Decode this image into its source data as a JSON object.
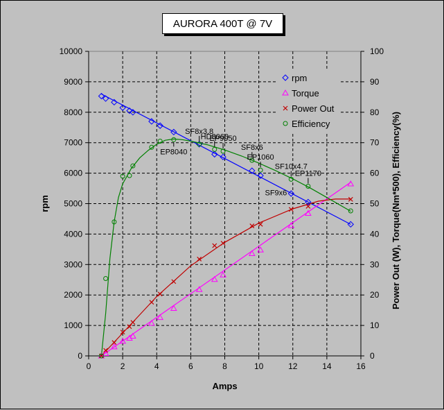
{
  "title": "AURORA 400T @ 7V",
  "chart_data": {
    "type": "scatter",
    "xlabel": "Amps",
    "ylabel_left": "rpm",
    "ylabel_right": "Power Out (W), Torque(Nm*500), Efficiency(%)",
    "xlim": [
      0,
      16
    ],
    "ylim_left": [
      0,
      10000
    ],
    "ylim_right": [
      0,
      100
    ],
    "x_ticks": [
      "0",
      "2",
      "4",
      "6",
      "8",
      "10",
      "12",
      "14",
      "16"
    ],
    "y_ticks_left": [
      "0",
      "1000",
      "2000",
      "3000",
      "4000",
      "5000",
      "6000",
      "7000",
      "8000",
      "9000",
      "10000"
    ],
    "y_ticks_right": [
      "0",
      "10",
      "20",
      "30",
      "40",
      "50",
      "60",
      "70",
      "80",
      "90",
      "100"
    ],
    "grid": true,
    "legend_position": "top-right",
    "colors": {
      "rpm": "#0000ff",
      "torque": "#ff00ff",
      "power": "#c00000",
      "efficiency": "#008000",
      "plot_bg": "#c0c0c0"
    },
    "series": [
      {
        "name": "rpm",
        "axis": "left",
        "marker": "diamond",
        "x": [
          0.75,
          1.0,
          1.5,
          2.0,
          2.4,
          2.6,
          3.7,
          4.2,
          5.0,
          6.5,
          7.4,
          7.9,
          9.6,
          10.1,
          11.9,
          12.9,
          15.4
        ],
        "y": [
          8530,
          8450,
          8330,
          8150,
          8050,
          8000,
          7700,
          7560,
          7350,
          6950,
          6620,
          6530,
          6080,
          5920,
          5330,
          5050,
          4320
        ],
        "fit": [
          [
            0.75,
            8600
          ],
          [
            15.4,
            4320
          ]
        ]
      },
      {
        "name": "Torque",
        "axis": "right",
        "marker": "triangle",
        "x": [
          0.75,
          1.0,
          1.5,
          2.0,
          2.4,
          2.6,
          3.7,
          4.2,
          5.0,
          6.5,
          7.4,
          7.9,
          9.6,
          10.1,
          11.9,
          12.9,
          15.4
        ],
        "y": [
          0.0,
          0.8,
          3.0,
          4.8,
          5.8,
          6.5,
          10.7,
          12.6,
          15.6,
          21.8,
          25.1,
          26.6,
          33.6,
          34.8,
          42.8,
          46.8,
          56.5
        ],
        "fit": [
          [
            0.75,
            0
          ],
          [
            15.4,
            57
          ]
        ]
      },
      {
        "name": "Power Out",
        "axis": "right",
        "marker": "x",
        "x": [
          0.75,
          1.0,
          1.5,
          2.0,
          2.4,
          2.6,
          3.7,
          4.2,
          5.0,
          6.5,
          7.4,
          7.9,
          9.6,
          10.1,
          11.9,
          12.9,
          15.4
        ],
        "y": [
          0.0,
          1.8,
          4.4,
          7.8,
          9.6,
          11.0,
          17.6,
          20.3,
          24.4,
          31.8,
          36.2,
          37.0,
          42.7,
          43.2,
          48.1,
          49.1,
          51.4
        ],
        "fit": [
          [
            0.75,
            0
          ],
          [
            2.0,
            7.5
          ],
          [
            4.0,
            19.5
          ],
          [
            6.0,
            29.6
          ],
          [
            8.0,
            37.3
          ],
          [
            10.0,
            43.6
          ],
          [
            12.0,
            48.3
          ],
          [
            13.5,
            50.8
          ],
          [
            14.5,
            51.5
          ],
          [
            15.4,
            51.5
          ]
        ]
      },
      {
        "name": "Efficiency",
        "axis": "right",
        "marker": "circle",
        "x": [
          0.75,
          1.0,
          1.5,
          2.0,
          2.4,
          2.6,
          3.7,
          4.2,
          5.0,
          6.5,
          7.4,
          7.9,
          9.6,
          10.1,
          11.9,
          12.9,
          15.4
        ],
        "y": [
          0.0,
          25.4,
          44.0,
          59.0,
          59.2,
          62.4,
          68.5,
          70.5,
          71.0,
          69.5,
          67.8,
          67.2,
          64.2,
          61.0,
          58.0,
          55.7,
          47.6
        ],
        "fit": [
          [
            0.75,
            0
          ],
          [
            1.0,
            14
          ],
          [
            1.25,
            32
          ],
          [
            1.5,
            44
          ],
          [
            1.75,
            52
          ],
          [
            2.0,
            56.5
          ],
          [
            2.5,
            61.5
          ],
          [
            3.0,
            65
          ],
          [
            3.5,
            67.5
          ],
          [
            4.0,
            69.5
          ],
          [
            4.5,
            70.8
          ],
          [
            5.0,
            71.2
          ],
          [
            5.5,
            71.0
          ],
          [
            6.0,
            70.5
          ],
          [
            7.0,
            69.3
          ],
          [
            8.0,
            67.6
          ],
          [
            9.0,
            65.6
          ],
          [
            10.0,
            63.3
          ],
          [
            11.0,
            60.8
          ],
          [
            12.0,
            58.1
          ],
          [
            13.0,
            55.2
          ],
          [
            14.0,
            52.0
          ],
          [
            15.4,
            47.5
          ]
        ]
      }
    ],
    "annotations": [
      {
        "text": "EP8040",
        "x": 5.0,
        "y": 71.0,
        "pos": "below"
      },
      {
        "text": "SF8x3.8",
        "x": 6.5,
        "y": 69.5,
        "pos": "above"
      },
      {
        "text": "HD8060",
        "x": 7.4,
        "y": 67.8,
        "pos": "above"
      },
      {
        "text": "EP9050",
        "x": 7.9,
        "y": 67.2,
        "pos": "above"
      },
      {
        "text": "SF8x6",
        "x": 9.6,
        "y": 64.2,
        "pos": "above"
      },
      {
        "text": "EP1060",
        "x": 10.1,
        "y": 61.0,
        "pos": "above"
      },
      {
        "text": "SF10x4.7",
        "x": 11.9,
        "y": 58.0,
        "pos": "above"
      },
      {
        "text": "EP1170",
        "x": 12.9,
        "y": 55.7,
        "pos": "above"
      },
      {
        "text": "SF9x6",
        "x": 11.9,
        "y": 58.0,
        "pos": "below-left"
      }
    ]
  }
}
